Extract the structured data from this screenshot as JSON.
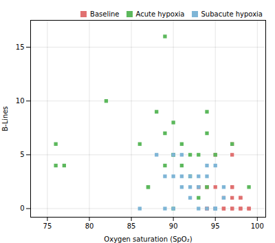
{
  "chart_data": {
    "type": "scatter",
    "xlabel": "Oxygen saturation (SpO₂)",
    "ylabel": "B-Lines",
    "xlim": [
      73,
      101
    ],
    "ylim": [
      -0.8,
      17.5
    ],
    "xticks": [
      75,
      80,
      85,
      90,
      95,
      100
    ],
    "yticks": [
      0,
      5,
      10,
      15
    ],
    "grid": true,
    "legend": "upper right",
    "marker": "square",
    "series": [
      {
        "name": "Baseline",
        "color": "#e07070",
        "x": [
          93,
          93,
          94,
          94,
          94,
          94,
          95,
          95,
          95,
          96,
          96,
          96,
          97,
          97,
          97,
          97,
          97,
          97,
          97,
          98,
          98,
          98,
          98,
          99,
          99
        ],
        "values": [
          2,
          2,
          0,
          2,
          2,
          0,
          5,
          2,
          0,
          1,
          0,
          0,
          6,
          5,
          2,
          2,
          1,
          0,
          0,
          1,
          1,
          0,
          0,
          0,
          0
        ]
      },
      {
        "name": "Acute hypoxia",
        "color": "#5cb85c",
        "x": [
          76,
          76,
          77,
          82,
          86,
          87,
          87,
          88,
          89,
          89,
          89,
          90,
          90,
          90,
          90,
          91,
          91,
          92,
          92,
          93,
          93,
          94,
          94,
          94,
          95,
          97,
          99
        ],
        "values": [
          6,
          4,
          4,
          10,
          6,
          2,
          2,
          9,
          16,
          7,
          4,
          8,
          5,
          5,
          0,
          6,
          4,
          5,
          3,
          5,
          1,
          9,
          7,
          2,
          5,
          6,
          2
        ]
      },
      {
        "name": "Subacute hypoxia",
        "color": "#7eb5d6",
        "x": [
          86,
          88,
          89,
          89,
          90,
          90,
          90,
          91,
          91,
          91,
          92,
          92,
          92,
          93,
          93,
          93,
          94,
          94,
          94,
          95,
          95,
          95,
          95,
          96,
          96
        ],
        "values": [
          0,
          5,
          3,
          0,
          5,
          3,
          0,
          5,
          3,
          2,
          3,
          2,
          1,
          3,
          2,
          0,
          4,
          3,
          0,
          0,
          0,
          0,
          4,
          2,
          1
        ]
      }
    ]
  }
}
